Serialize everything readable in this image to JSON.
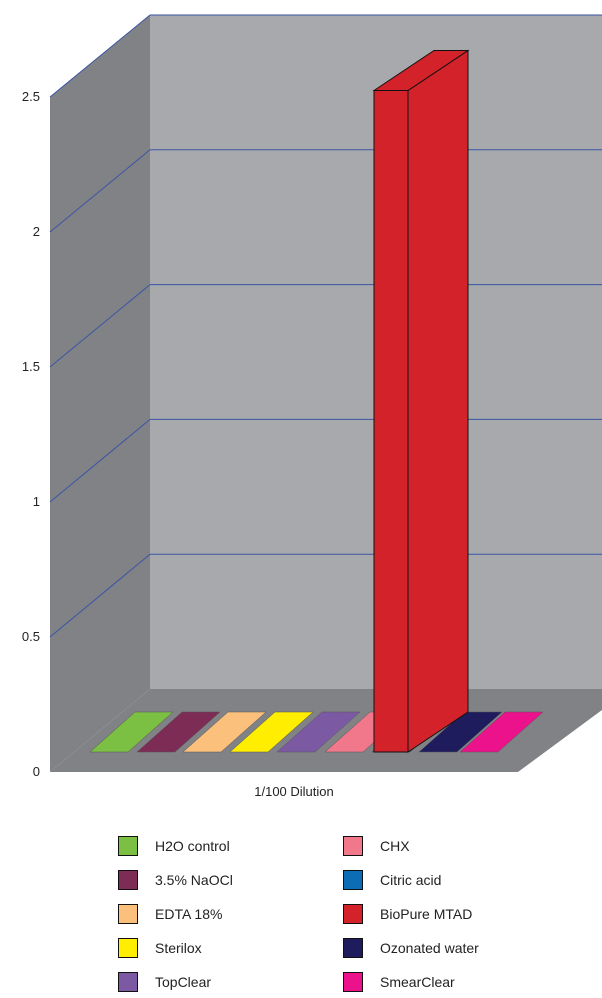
{
  "chart_data": {
    "type": "bar",
    "three_d": true,
    "categories": [
      "1/100 Dilution"
    ],
    "series": [
      {
        "name": "H2O control",
        "values": [
          0
        ],
        "color": "#7bc043"
      },
      {
        "name": "3.5% NaOCl",
        "values": [
          0
        ],
        "color": "#7d2c55"
      },
      {
        "name": "EDTA 18%",
        "values": [
          0
        ],
        "color": "#fbc17c"
      },
      {
        "name": "Sterilox",
        "values": [
          0
        ],
        "color": "#ffee00"
      },
      {
        "name": "TopClear",
        "values": [
          0
        ],
        "color": "#7c5aa3"
      },
      {
        "name": "CHX",
        "values": [
          0
        ],
        "color": "#f0788a"
      },
      {
        "name": "Citric acid",
        "values": [
          0
        ],
        "color": "#0a6db5"
      },
      {
        "name": "BioPure MTAD",
        "values": [
          2.45
        ],
        "color": "#d32229"
      },
      {
        "name": "Ozonated water",
        "values": [
          0
        ],
        "color": "#1f1c5e"
      },
      {
        "name": "SmearClear",
        "values": [
          0
        ],
        "color": "#ec128c"
      }
    ],
    "ylim": [
      0,
      2.5
    ],
    "yticks": [
      "0",
      "0.5",
      "1",
      "1.5",
      "2",
      "2.5"
    ],
    "grid": true,
    "legend_position": "bottom",
    "colors": {
      "back_wall": "#a7a9ac",
      "side_wall": "#808285",
      "floor": "#808285",
      "gridline": "#3a55a5"
    }
  }
}
